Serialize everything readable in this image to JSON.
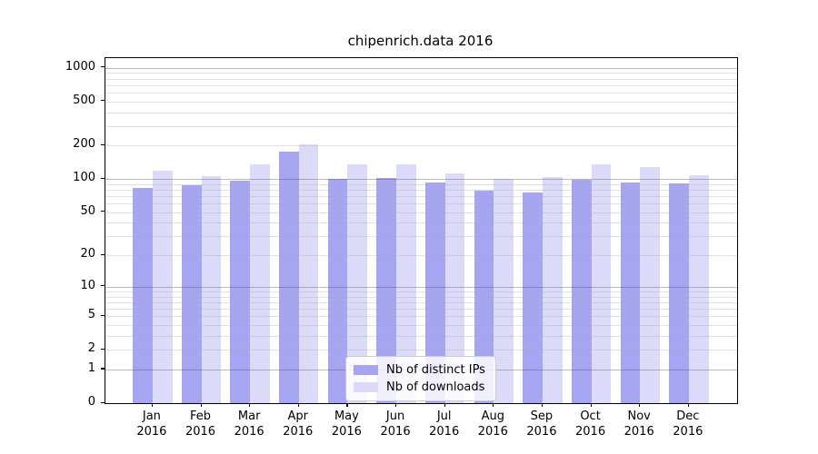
{
  "chart_data": {
    "type": "bar",
    "title": "chipenrich.data 2016",
    "categories": [
      "Jan",
      "Feb",
      "Mar",
      "Apr",
      "May",
      "Jun",
      "Jul",
      "Aug",
      "Sep",
      "Oct",
      "Nov",
      "Dec"
    ],
    "category_year": "2016",
    "series": [
      {
        "name": "Nb of distinct IPs",
        "color": "#a5a5f2",
        "values": [
          83,
          88,
          96,
          177,
          100,
          102,
          93,
          79,
          76,
          99,
          93,
          92
        ]
      },
      {
        "name": "Nb of downloads",
        "color": "#dbdbf9",
        "values": [
          120,
          106,
          137,
          205,
          135,
          137,
          113,
          100,
          105,
          135,
          128,
          108
        ]
      }
    ],
    "yscale": "log10(1+y)",
    "ylim": [
      0,
      1000
    ],
    "yticks": [
      0,
      1,
      2,
      5,
      10,
      20,
      50,
      100,
      200,
      500,
      1000
    ],
    "major_gridlines": [
      1,
      10,
      100,
      1000
    ],
    "minor_gridlines": [
      2,
      3,
      4,
      5,
      6,
      7,
      8,
      9,
      20,
      30,
      40,
      50,
      60,
      70,
      80,
      90,
      200,
      300,
      400,
      500,
      600,
      700,
      800,
      900
    ],
    "grid": true,
    "legend_position": "lower center",
    "xlabel": "",
    "ylabel": ""
  }
}
